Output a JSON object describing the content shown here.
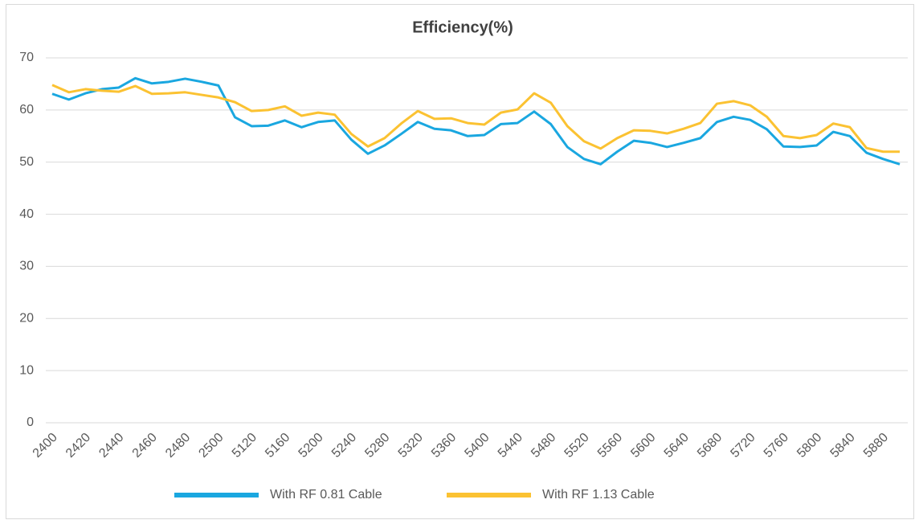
{
  "chart_data": {
    "type": "line",
    "title": "Efficiency(%)",
    "categories": [
      "2400",
      null,
      "2420",
      null,
      "2440",
      null,
      "2460",
      null,
      "2480",
      null,
      "2500",
      null,
      "5120",
      null,
      "5160",
      null,
      "5200",
      null,
      "5240",
      null,
      "5280",
      null,
      "5320",
      null,
      "5360",
      null,
      "5400",
      null,
      "5440",
      null,
      "5480",
      null,
      "5520",
      null,
      "5560",
      null,
      "5600",
      null,
      "5640",
      null,
      "5680",
      null,
      "5720",
      null,
      "5760",
      null,
      "5800",
      null,
      "5840",
      null,
      "5880",
      null
    ],
    "series": [
      {
        "name": "With RF 0.81 Cable",
        "color": "#1aa7e0",
        "values": [
          63.1,
          62.0,
          63.2,
          64.0,
          64.3,
          66.1,
          65.1,
          65.4,
          66.0,
          65.4,
          64.7,
          58.6,
          56.9,
          57.0,
          58.0,
          56.7,
          57.7,
          58.0,
          54.3,
          51.6,
          53.2,
          55.4,
          57.7,
          56.4,
          56.1,
          55.0,
          55.2,
          57.3,
          57.5,
          59.7,
          57.3,
          52.9,
          50.6,
          49.6,
          52.0,
          54.1,
          53.7,
          52.9,
          53.7,
          54.6,
          57.7,
          58.7,
          58.1,
          56.3,
          53.0,
          52.9,
          53.2,
          55.8,
          55.0,
          51.8,
          50.6,
          49.6
        ]
      },
      {
        "name": "With RF 1.13 Cable",
        "color": "#fbc232",
        "values": [
          64.8,
          63.4,
          64.0,
          63.7,
          63.5,
          64.6,
          63.1,
          63.2,
          63.4,
          62.9,
          62.4,
          61.5,
          59.8,
          60.0,
          60.7,
          58.9,
          59.5,
          59.1,
          55.4,
          53.0,
          54.6,
          57.4,
          59.8,
          58.3,
          58.4,
          57.5,
          57.2,
          59.5,
          60.1,
          63.2,
          61.4,
          56.9,
          54.0,
          52.6,
          54.6,
          56.1,
          56.0,
          55.5,
          56.4,
          57.5,
          61.2,
          61.7,
          60.9,
          58.7,
          55.0,
          54.6,
          55.2,
          57.4,
          56.7,
          52.7,
          52.0,
          52.0
        ]
      }
    ],
    "ylim": [
      0,
      70
    ],
    "yticks": [
      0,
      10,
      20,
      30,
      40,
      50,
      60,
      70
    ],
    "grid": true,
    "legend": "bottom"
  }
}
